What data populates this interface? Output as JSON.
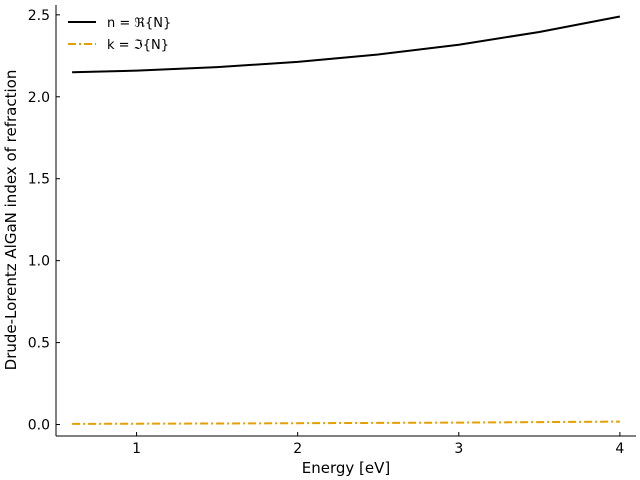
{
  "chart_data": {
    "type": "line",
    "title": "",
    "xlabel": "Energy [eV]",
    "ylabel": "Drude-Lorentz AlGaN index of refraction",
    "xlim": [
      0.5,
      4.1
    ],
    "ylim": [
      -0.07,
      2.56
    ],
    "xticks": [
      1,
      2,
      3,
      4
    ],
    "xtick_labels": [
      "1",
      "2",
      "3",
      "4"
    ],
    "yticks": [
      0.0,
      0.5,
      1.0,
      1.5,
      2.0,
      2.5
    ],
    "ytick_labels": [
      "0.0",
      "0.5",
      "1.0",
      "1.5",
      "2.0",
      "2.5"
    ],
    "grid": false,
    "legend_position": "top-left",
    "series": [
      {
        "name": "n = ℜ{N}",
        "color": "#000000",
        "style": "solid",
        "x": [
          0.6,
          1.0,
          1.5,
          2.0,
          2.5,
          3.0,
          3.5,
          4.0
        ],
        "values": [
          2.15,
          2.16,
          2.181,
          2.213,
          2.258,
          2.318,
          2.395,
          2.49
        ]
      },
      {
        "name": "k = ℑ{N}",
        "color": "#e69f00",
        "style": "dashdot",
        "x": [
          0.6,
          1.0,
          1.5,
          2.0,
          2.5,
          3.0,
          3.5,
          4.0
        ],
        "values": [
          0.004,
          0.005,
          0.006,
          0.008,
          0.01,
          0.012,
          0.015,
          0.018
        ]
      }
    ]
  }
}
